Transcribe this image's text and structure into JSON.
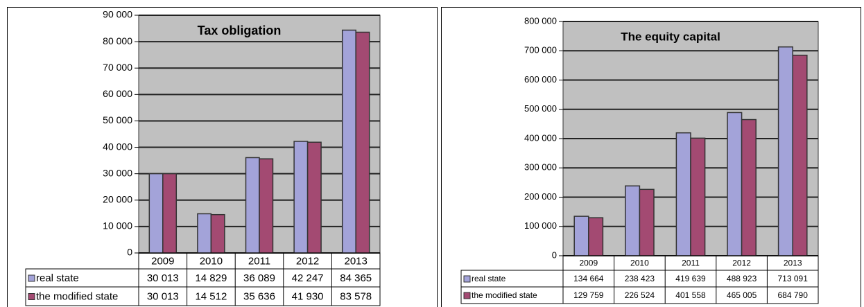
{
  "chart_data": [
    {
      "type": "bar",
      "title": "Tax obligation",
      "categories": [
        "2009",
        "2010",
        "2011",
        "2012",
        "2013"
      ],
      "series": [
        {
          "name": "real state",
          "color": "#a3a3d9",
          "values": [
            30013,
            14829,
            36089,
            42247,
            84365
          ],
          "value_labels": [
            "30 013",
            "14 829",
            "36 089",
            "42 247",
            "84 365"
          ]
        },
        {
          "name": "the modified state",
          "color": "#a34a72",
          "values": [
            30013,
            14512,
            35636,
            41930,
            83578
          ],
          "value_labels": [
            "30 013",
            "14 512",
            "35 636",
            "41 930",
            "83 578"
          ]
        }
      ],
      "ylim": [
        0,
        90000
      ],
      "yticks": [
        0,
        {
          "value": 10000,
          "label": "10 000"
        },
        {
          "value": 20000,
          "label": "20 000"
        },
        {
          "value": 30000,
          "label": "30 000"
        },
        {
          "value": 40000,
          "label": "40 000"
        },
        {
          "value": 50000,
          "label": "50 000"
        },
        {
          "value": 60000,
          "label": "60 000"
        },
        {
          "value": 70000,
          "label": "70 000"
        },
        {
          "value": 80000,
          "label": "80 000"
        },
        {
          "value": 90000,
          "label": "90 000"
        }
      ],
      "grid": true
    },
    {
      "type": "bar",
      "title": "The equity capital",
      "categories": [
        "2009",
        "2010",
        "2011",
        "2012",
        "2013"
      ],
      "series": [
        {
          "name": "real state",
          "color": "#a3a3d9",
          "values": [
            134664,
            238423,
            419639,
            488923,
            713091
          ],
          "value_labels": [
            "134 664",
            "238 423",
            "419 639",
            "488 923",
            "713 091"
          ]
        },
        {
          "name": "the modified state",
          "color": "#a34a72",
          "values": [
            129759,
            226524,
            401558,
            465005,
            684790
          ],
          "value_labels": [
            "129 759",
            "226 524",
            "401 558",
            "465 005",
            "684 790"
          ]
        }
      ],
      "ylim": [
        0,
        800000
      ],
      "yticks": [
        0,
        {
          "value": 100000,
          "label": "100 000"
        },
        {
          "value": 200000,
          "label": "200 000"
        },
        {
          "value": 300000,
          "label": "300 000"
        },
        {
          "value": 400000,
          "label": "400 000"
        },
        {
          "value": 500000,
          "label": "500 000"
        },
        {
          "value": 600000,
          "label": "600 000"
        },
        {
          "value": 700000,
          "label": "700 000"
        },
        {
          "value": 800000,
          "label": "800 000"
        }
      ],
      "grid": true
    }
  ]
}
